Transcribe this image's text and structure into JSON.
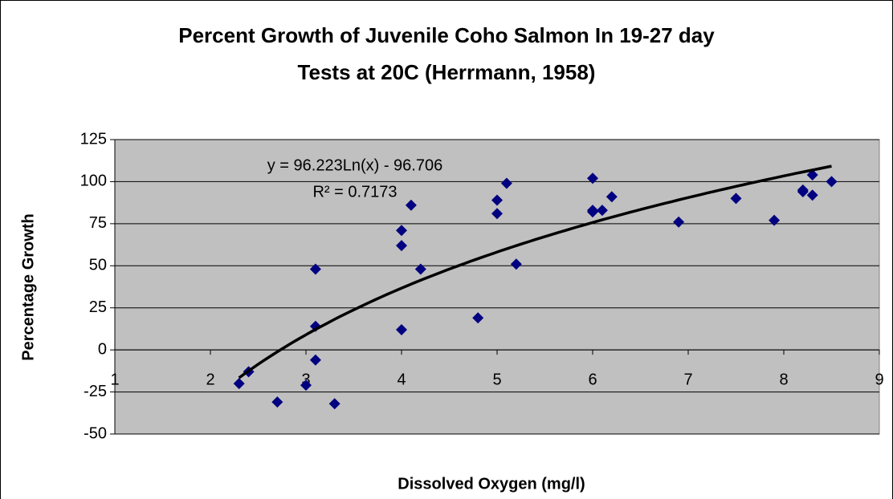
{
  "chart_data": {
    "type": "scatter",
    "title": [
      "Percent Growth of Juvenile Coho Salmon In 19-27 day",
      "Tests at 20C (Herrmann, 1958)"
    ],
    "x_label": "Dissolved Oxygen (mg/l)",
    "y_label": "Percentage Growth",
    "x": [
      2.3,
      2.4,
      2.7,
      3.0,
      3.1,
      3.1,
      3.1,
      3.3,
      4.0,
      4.0,
      4.0,
      4.1,
      4.2,
      4.8,
      5.0,
      5.0,
      5.1,
      5.2,
      6.0,
      6.0,
      6.0,
      6.1,
      6.2,
      6.9,
      7.5,
      7.9,
      8.2,
      8.2,
      8.3,
      8.3,
      8.5
    ],
    "values": [
      -20,
      -13,
      -31,
      -21,
      48,
      14,
      -6,
      -32,
      71,
      62,
      12,
      86,
      48,
      19,
      89,
      81,
      99,
      51,
      102,
      83,
      82,
      83,
      91,
      76,
      90,
      77,
      95,
      94,
      104,
      92,
      100
    ],
    "color": "#000080",
    "xlim": [
      1,
      9
    ],
    "xticks": [
      1,
      2,
      3,
      4,
      5,
      6,
      7,
      8,
      9
    ],
    "ylim": [
      -50,
      125
    ],
    "yticks": [
      -50,
      -25,
      0,
      25,
      50,
      75,
      100,
      125
    ],
    "grid": true,
    "trendline": {
      "type": "log",
      "a": 96.223,
      "b": -96.706,
      "x_range": [
        2.3,
        8.5
      ],
      "color": "#000000",
      "equation_label": "y = 96.223Ln(x) - 96.706",
      "r2_label": "R² = 0.7173"
    }
  }
}
